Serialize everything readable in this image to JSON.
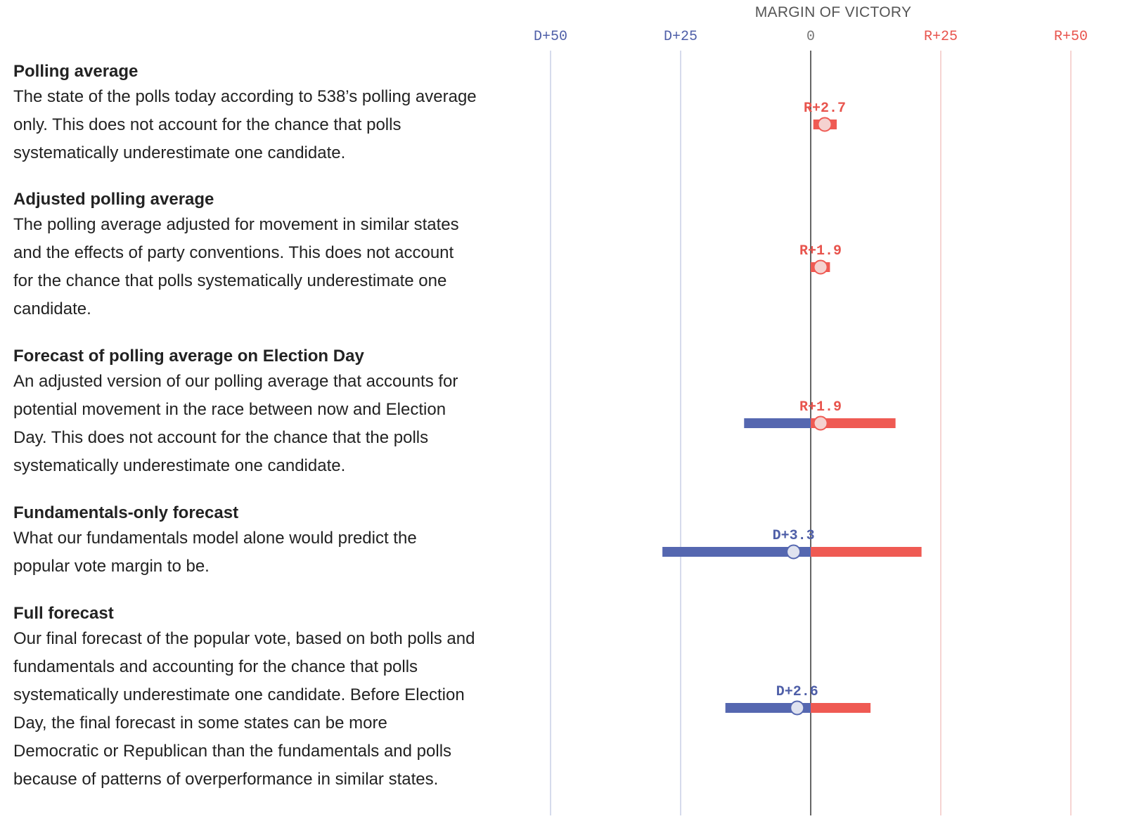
{
  "chart_data": {
    "type": "range-dot",
    "title": "MARGIN OF VICTORY",
    "x_ticks": [
      {
        "value": -50,
        "label": "D+50",
        "party": "D"
      },
      {
        "value": -25,
        "label": "D+25",
        "party": "D"
      },
      {
        "value": 0,
        "label": "0",
        "party": "none"
      },
      {
        "value": 25,
        "label": "R+25",
        "party": "R"
      },
      {
        "value": 50,
        "label": "R+50",
        "party": "R"
      }
    ],
    "xlim": [
      -50,
      50
    ],
    "grid": true,
    "rows": [
      {
        "label": "Polling average",
        "description": [
          "The state of the polls today according to 538’s polling average",
          "only. This does not account for the chance that polls",
          "systematically underestimate one candidate."
        ],
        "value": 2.7,
        "value_label": "R+2.7",
        "range_low": 0.5,
        "range_high": 5.0
      },
      {
        "label": "Adjusted polling average",
        "description": [
          "The polling average adjusted for movement in similar states",
          "and the effects of party conventions. This does not account",
          "for the chance that polls systematically underestimate one",
          "candidate."
        ],
        "value": 1.9,
        "value_label": "R+1.9",
        "range_low": 0.0,
        "range_high": 3.7
      },
      {
        "label": "Forecast of polling average on Election Day",
        "description": [
          "An adjusted version of our polling average that accounts for",
          "potential movement in the race between now and Election",
          "Day. This does not account for the chance that the polls",
          "systematically underestimate one candidate."
        ],
        "value": 1.9,
        "value_label": "R+1.9",
        "range_low": -12.8,
        "range_high": 16.3
      },
      {
        "label": "Fundamentals-only forecast",
        "description": [
          "What our fundamentals model alone would predict the",
          "popular vote margin to be."
        ],
        "value": -3.3,
        "value_label": "D+3.3",
        "range_low": -28.5,
        "range_high": 21.3
      },
      {
        "label": "Full forecast",
        "description": [
          "Our final forecast of the popular vote, based on both polls and",
          "fundamentals and accounting for the chance that polls",
          "systematically underestimate one candidate. Before Election",
          "Day, the final forecast in some states can be more",
          "Democratic or Republican than the fundamentals and polls",
          "because of patterns of overperformance in similar states."
        ],
        "value": -2.6,
        "value_label": "D+2.6",
        "range_low": -16.4,
        "range_high": 11.5
      }
    ],
    "colors": {
      "democrat": "#5567b0",
      "republican": "#ef5a53",
      "dem_label": "#4f5fa8",
      "rep_label": "#e8544d",
      "zero_line": "#333333",
      "dot_fill": "#f5d2d0",
      "dot_fill_dem": "#dfe2ef"
    }
  }
}
